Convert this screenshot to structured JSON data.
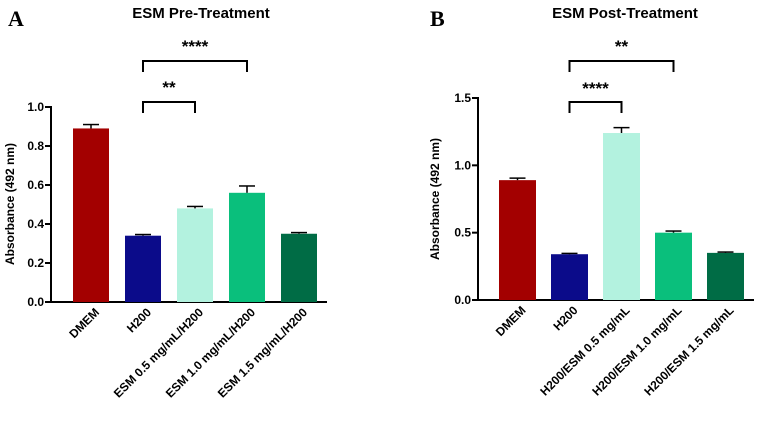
{
  "chart_data": [
    {
      "type": "bar",
      "panel": "A",
      "title": "ESM Pre-Treatment",
      "xlabel": "",
      "ylabel": "Absorbance (492 nm)",
      "ylim": [
        0,
        1.0
      ],
      "yticks": [
        0.0,
        0.2,
        0.4,
        0.6,
        0.8,
        1.0
      ],
      "ytick_labels": [
        "0.0",
        "0.2",
        "0.4",
        "0.6",
        "0.8",
        "1.0"
      ],
      "categories": [
        "DMEM",
        "H200",
        "ESM 0.5 mg/mL/H200",
        "ESM 1.0 mg/mL/H200",
        "ESM 1.5 mg/mL/H200"
      ],
      "values": [
        0.89,
        0.34,
        0.48,
        0.56,
        0.35
      ],
      "errors": [
        0.02,
        0.006,
        0.01,
        0.035,
        0.006
      ],
      "colors": [
        "#a30000",
        "#0b0b8a",
        "#b3f2df",
        "#0abf7c",
        "#006c45"
      ],
      "significance": [
        {
          "from": 1,
          "to": 2,
          "label": "**"
        },
        {
          "from": 1,
          "to": 3,
          "label": "****"
        }
      ]
    },
    {
      "type": "bar",
      "panel": "B",
      "title": "ESM Post-Treatment",
      "xlabel": "",
      "ylabel": "Absorbance (492 nm)",
      "ylim": [
        0,
        1.5
      ],
      "yticks": [
        0.0,
        0.5,
        1.0,
        1.5
      ],
      "ytick_labels": [
        "0.0",
        "0.5",
        "1.0",
        "1.5"
      ],
      "categories": [
        "DMEM",
        "H200",
        "H200/ESM 0.5 mg/mL",
        "H200/ESM 1.0 mg/mL",
        "H200/ESM 1.5 mg/mL"
      ],
      "values": [
        0.89,
        0.34,
        1.24,
        0.5,
        0.35
      ],
      "errors": [
        0.015,
        0.006,
        0.04,
        0.012,
        0.006
      ],
      "colors": [
        "#a30000",
        "#0b0b8a",
        "#b3f2df",
        "#0abf7c",
        "#006c45"
      ],
      "significance": [
        {
          "from": 1,
          "to": 2,
          "label": "****"
        },
        {
          "from": 1,
          "to": 3,
          "label": "**"
        }
      ]
    }
  ]
}
